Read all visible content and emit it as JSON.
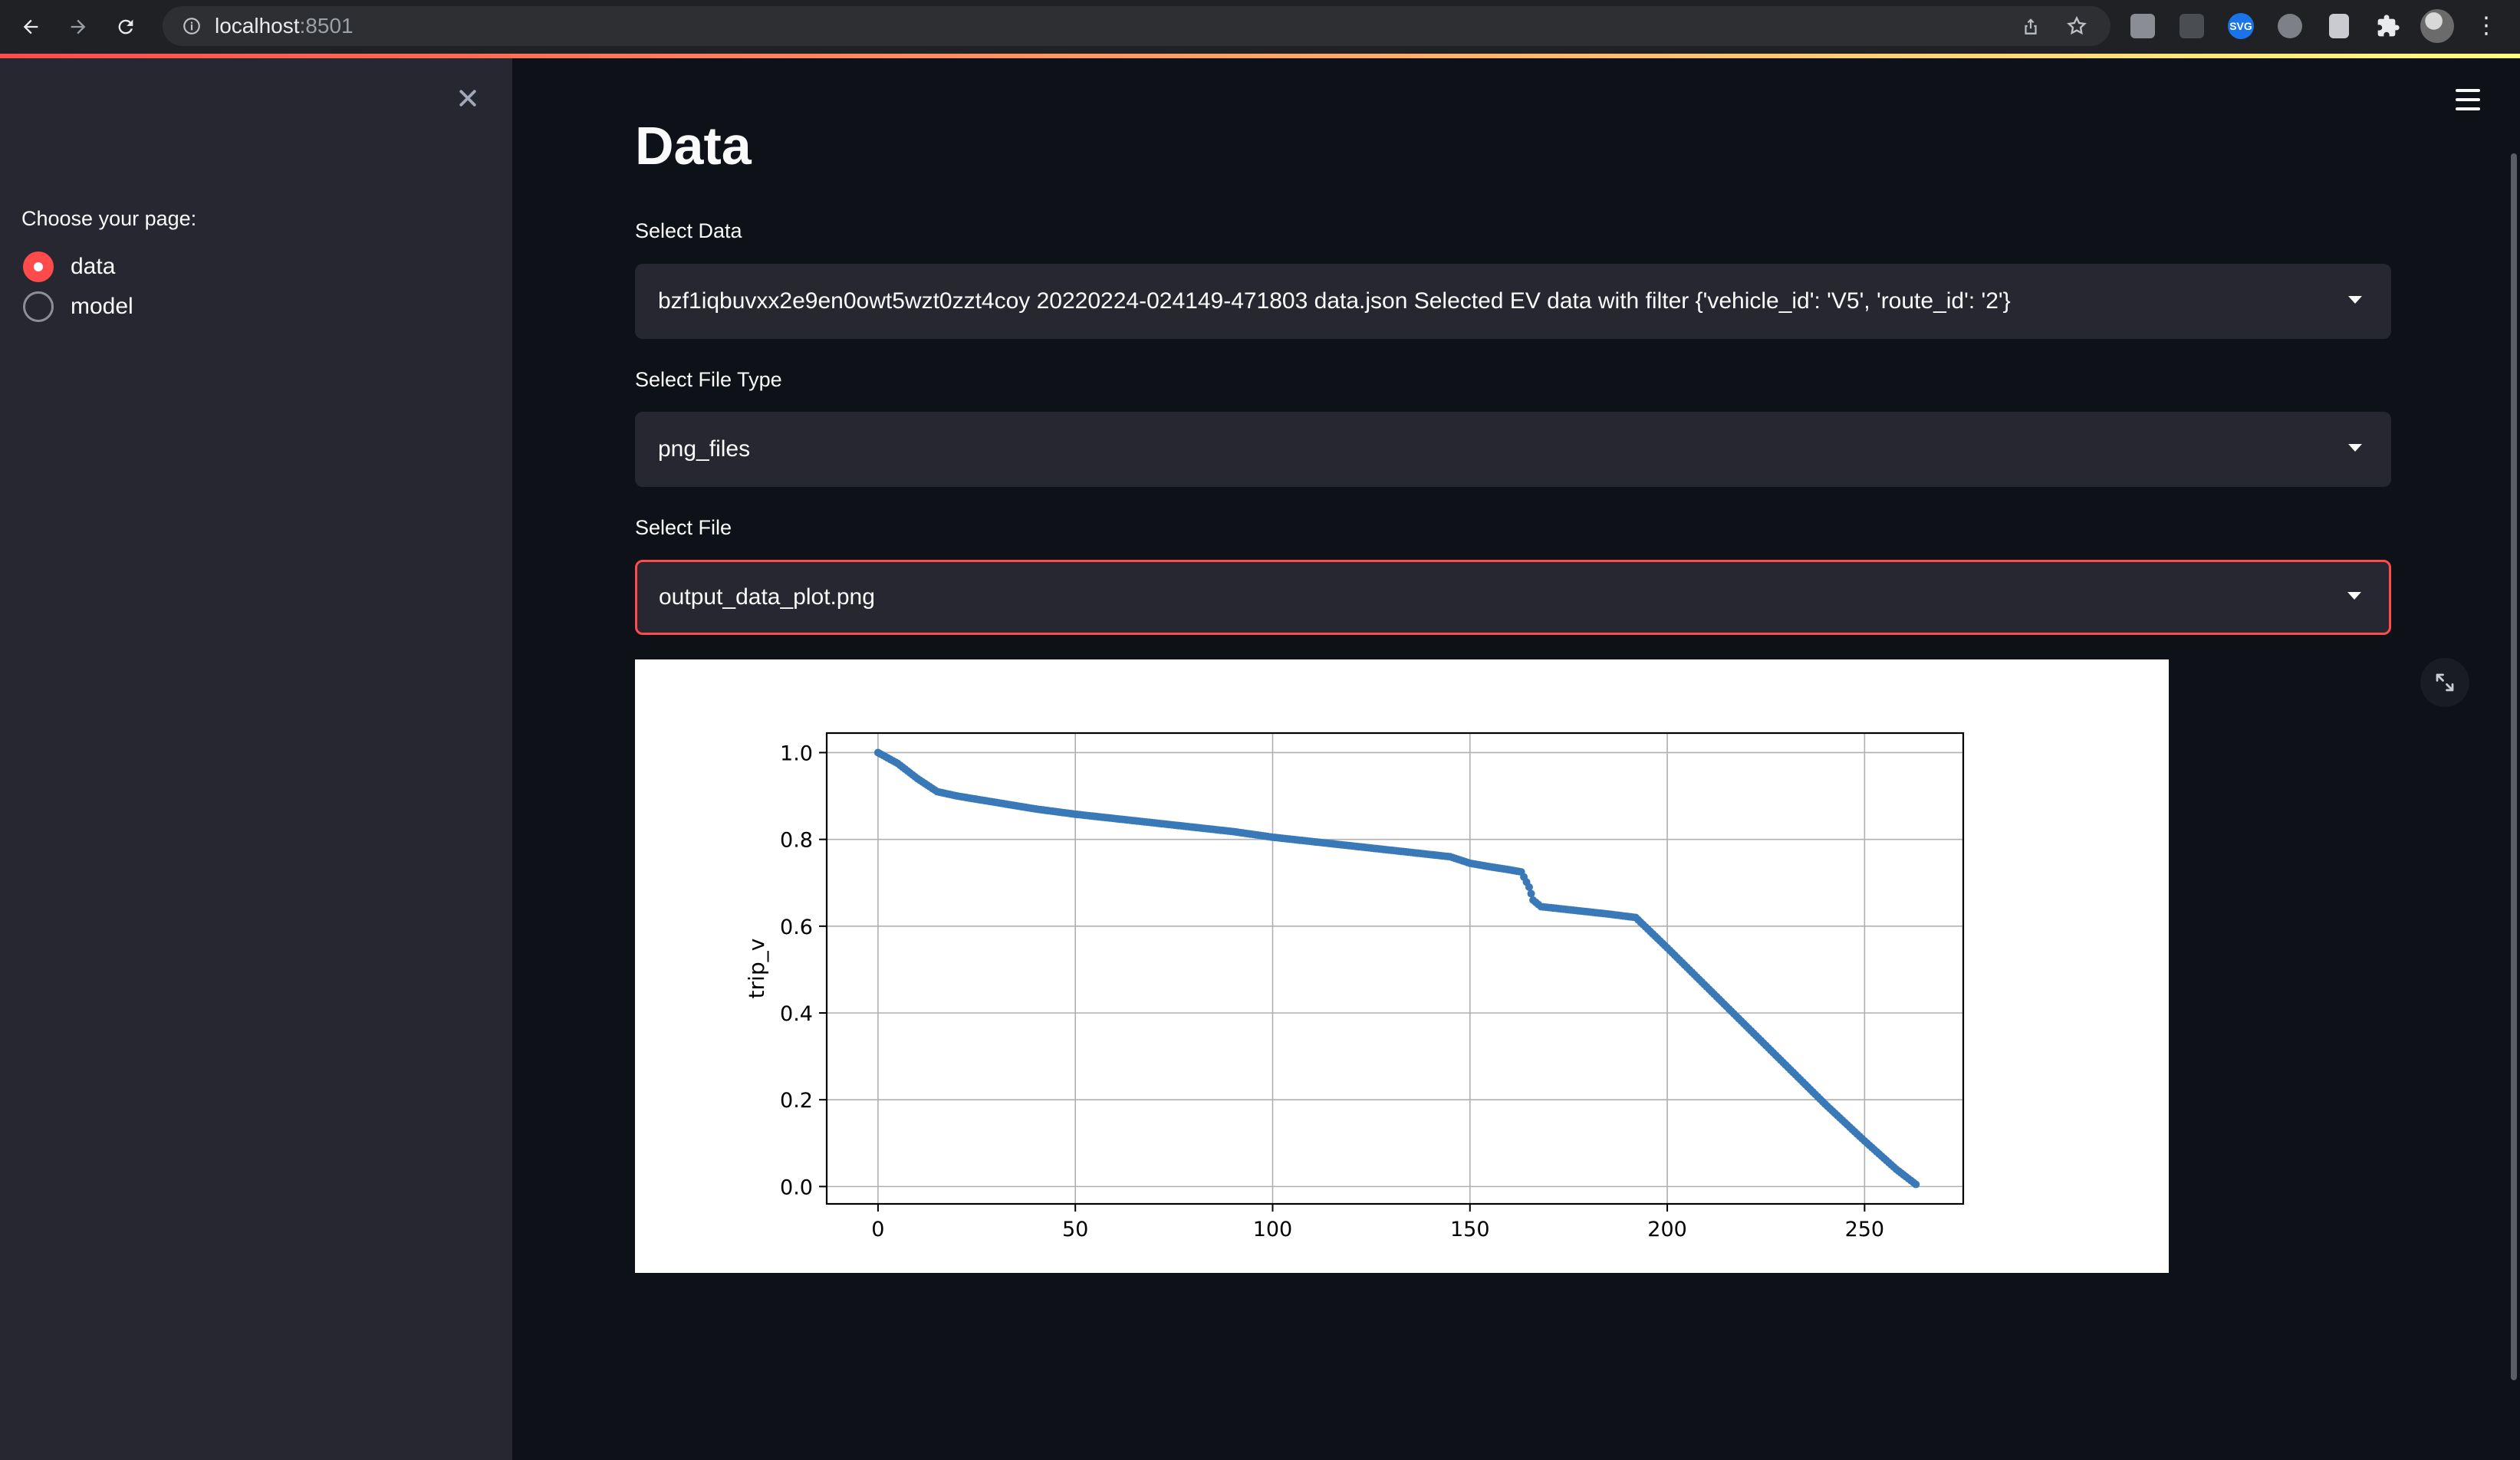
{
  "browser": {
    "url_host": "localhost",
    "url_port": ":8501"
  },
  "sidebar": {
    "radio_label": "Choose your page:",
    "options": [
      {
        "label": "data",
        "checked": true
      },
      {
        "label": "model",
        "checked": false
      }
    ]
  },
  "main": {
    "title": "Data",
    "select_data": {
      "label": "Select Data",
      "value": "bzf1iqbuvxx2e9en0owt5wzt0zzt4coy 20220224-024149-471803 data.json Selected EV data with filter {'vehicle_id': 'V5', 'route_id': '2'}"
    },
    "select_file_type": {
      "label": "Select File Type",
      "value": "png_files"
    },
    "select_file": {
      "label": "Select File",
      "value": "output_data_plot.png"
    }
  },
  "colors": {
    "accent": "#ff4b4b",
    "sidebar_bg": "#262730",
    "main_bg": "#0e1117",
    "series": "#3a79b8"
  },
  "chart_data": {
    "type": "scatter",
    "title": "",
    "xlabel": "",
    "ylabel": "trip_v",
    "xlim": [
      -13,
      275
    ],
    "ylim": [
      -0.04,
      1.045
    ],
    "x_ticks": [
      0,
      50,
      100,
      150,
      200,
      250
    ],
    "y_ticks": [
      "0.0",
      "0.2",
      "0.4",
      "0.6",
      "0.8",
      "1.0"
    ],
    "grid": true,
    "series": [
      {
        "points": [
          [
            0,
            1.0
          ],
          [
            5,
            0.975
          ],
          [
            10,
            0.94
          ],
          [
            15,
            0.91
          ],
          [
            20,
            0.9
          ],
          [
            30,
            0.885
          ],
          [
            40,
            0.87
          ],
          [
            50,
            0.858
          ],
          [
            60,
            0.848
          ],
          [
            70,
            0.838
          ],
          [
            80,
            0.828
          ],
          [
            90,
            0.818
          ],
          [
            100,
            0.805
          ],
          [
            110,
            0.795
          ],
          [
            120,
            0.785
          ],
          [
            130,
            0.775
          ],
          [
            140,
            0.765
          ],
          [
            145,
            0.76
          ],
          [
            150,
            0.745
          ],
          [
            155,
            0.737
          ],
          [
            160,
            0.73
          ],
          [
            163,
            0.725
          ],
          [
            165,
            0.69
          ],
          [
            166,
            0.66
          ],
          [
            168,
            0.645
          ],
          [
            175,
            0.638
          ],
          [
            185,
            0.628
          ],
          [
            192,
            0.62
          ],
          [
            200,
            0.55
          ],
          [
            210,
            0.46
          ],
          [
            220,
            0.37
          ],
          [
            230,
            0.28
          ],
          [
            240,
            0.19
          ],
          [
            250,
            0.105
          ],
          [
            258,
            0.04
          ],
          [
            263,
            0.005
          ]
        ]
      }
    ]
  }
}
